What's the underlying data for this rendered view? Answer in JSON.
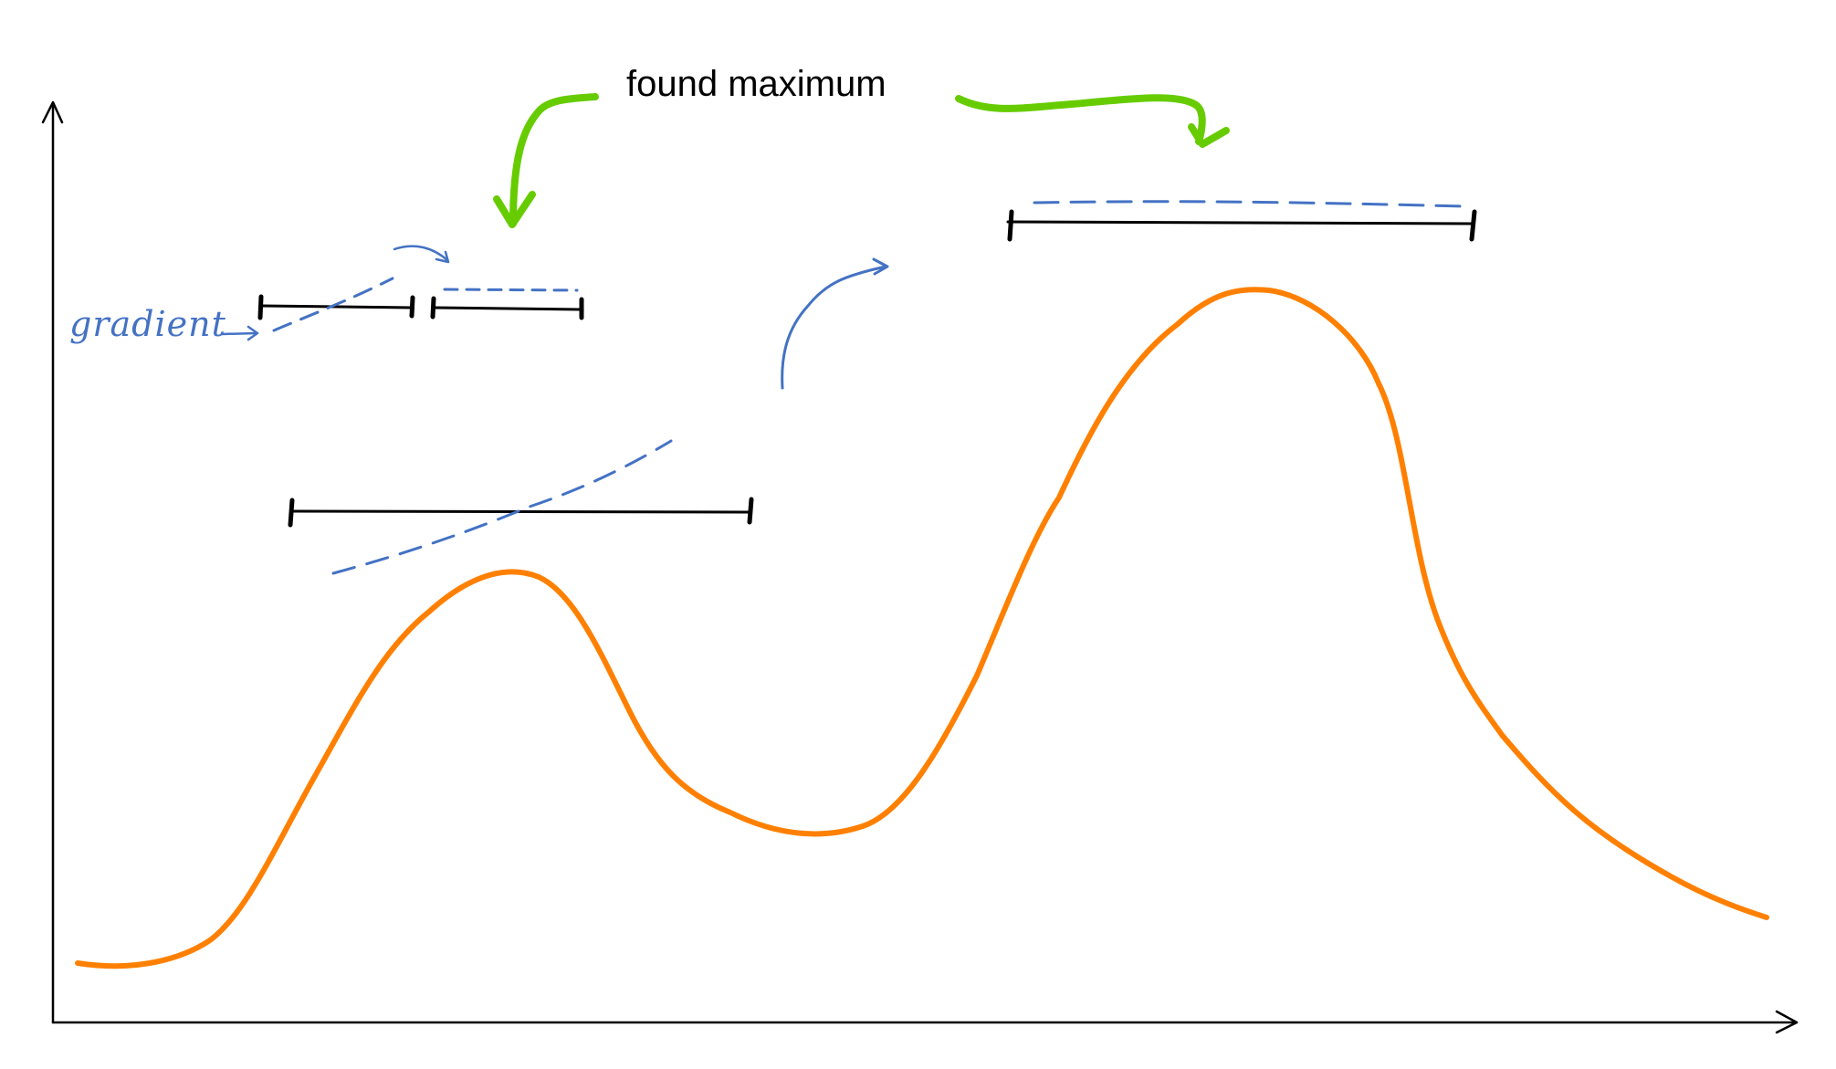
{
  "annotations": {
    "found_maximum": "found maximum",
    "gradient": "gradient"
  },
  "colors": {
    "curve": "#ff8000",
    "gradient_dash": "#4472c4",
    "found_arrows": "#66cc00",
    "interval": "#000000",
    "axes": "#000000"
  }
}
